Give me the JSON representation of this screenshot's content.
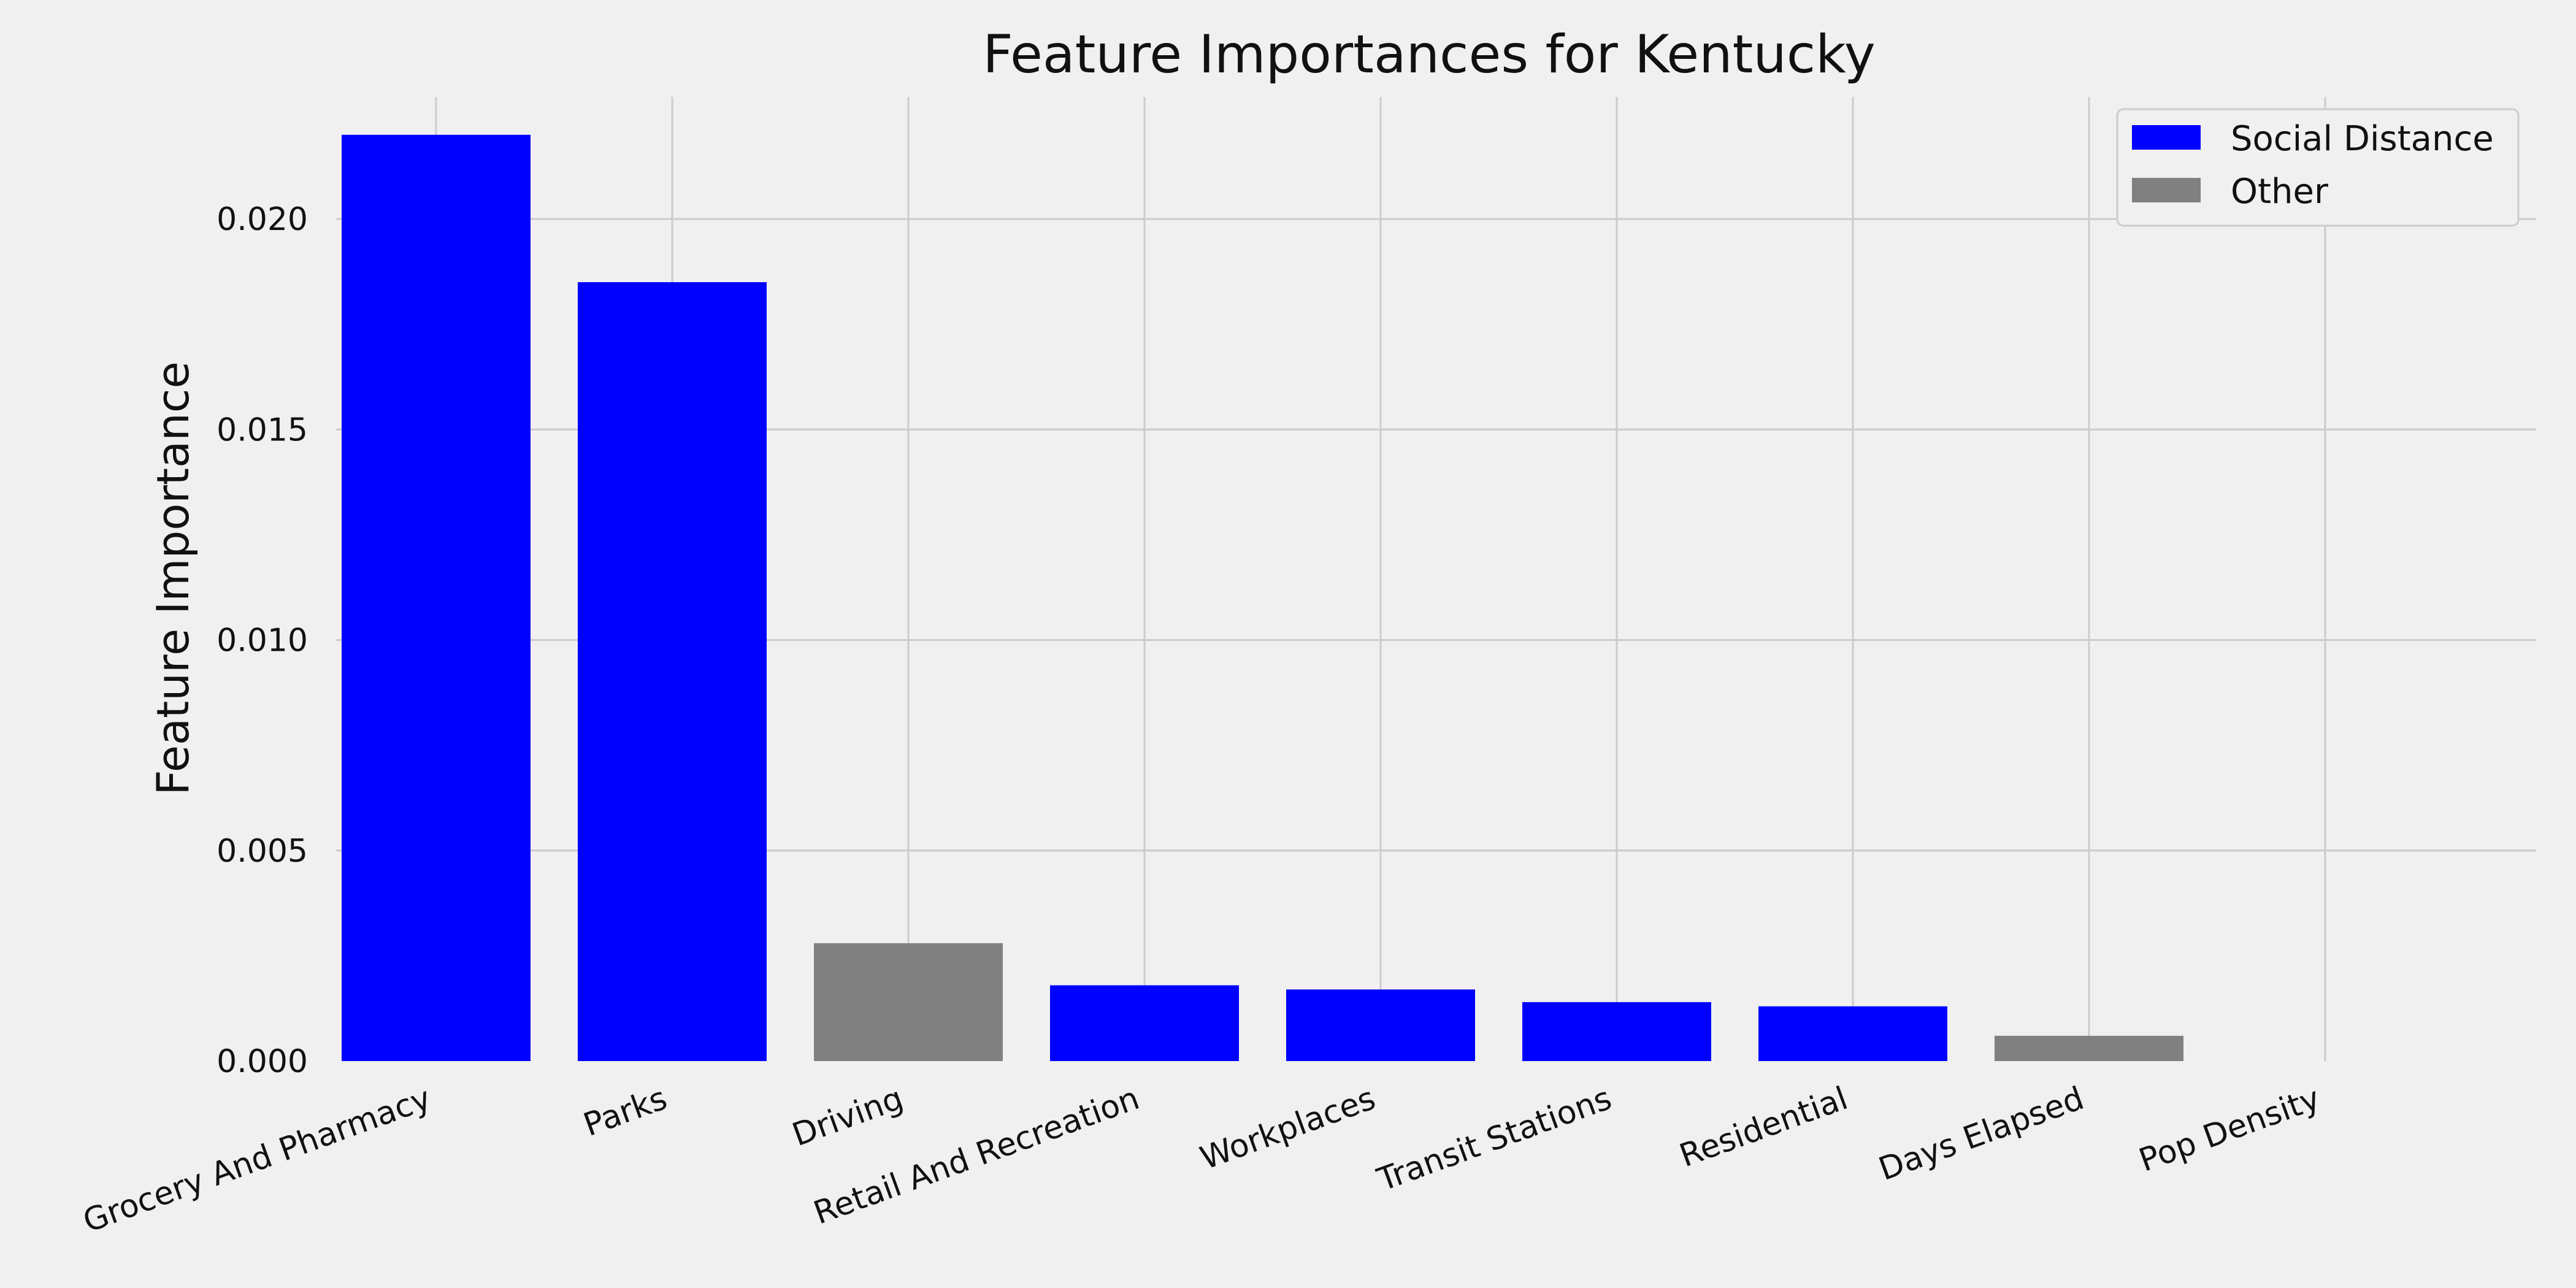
{
  "chart_data": {
    "type": "bar",
    "title": "Feature Importances for Kentucky",
    "xlabel": "",
    "ylabel": "Feature Importance",
    "categories": [
      "Grocery And Pharmacy",
      "Parks",
      "Driving",
      "Retail And Recreation",
      "Workplaces",
      "Transit Stations",
      "Residential",
      "Days Elapsed",
      "Pop Density"
    ],
    "values": [
      0.022,
      0.0185,
      0.0028,
      0.0018,
      0.0017,
      0.0014,
      0.0013,
      0.0006,
      0.0
    ],
    "groups": [
      "Social Distance",
      "Social Distance",
      "Other",
      "Social Distance",
      "Social Distance",
      "Social Distance",
      "Social Distance",
      "Other",
      "Other"
    ],
    "yticks": [
      "0.000",
      "0.005",
      "0.010",
      "0.015",
      "0.020"
    ],
    "ytick_values": [
      0.0,
      0.005,
      0.01,
      0.015,
      0.02
    ],
    "ylim": [
      0.0,
      0.0229
    ],
    "grid": true,
    "legend": {
      "position": "top-right",
      "entries": [
        {
          "label": "Social Distance",
          "color": "#0000ff"
        },
        {
          "label": "Other",
          "color": "#808080"
        }
      ]
    },
    "colors": {
      "Social Distance": "#0000ff",
      "Other": "#808080",
      "background": "#f0f0f0",
      "grid": "#cbcbcb"
    }
  }
}
